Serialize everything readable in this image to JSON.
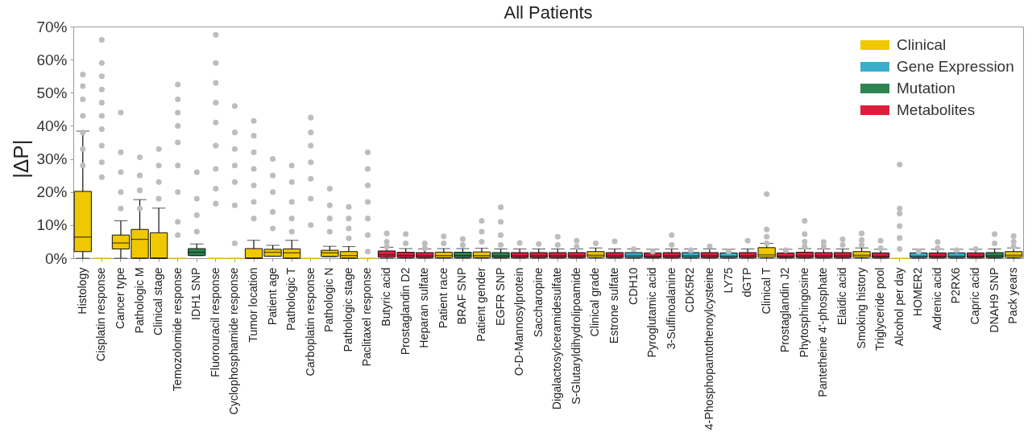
{
  "chart_data": {
    "type": "box",
    "title": "All Patients",
    "ylabel": "|ΔP|",
    "categories": [
      "Histology",
      "Cisplatin response",
      "Cancer type",
      "Pathologic M",
      "Clinical stage",
      "Temozolomide response",
      "IDH1 SNP",
      "Fluorouracil response",
      "Cyclophosphamide response",
      "Tumor location",
      "Patient age",
      "Pathologic T",
      "Carboplatin response",
      "Pathologic N",
      "Pathologic stage",
      "Paclitaxel response",
      "Butyric acid",
      "Prostaglandin D2",
      "Heparan sulfate",
      "Patient race",
      "BRAF SNP",
      "Patient gender",
      "EGFR SNP",
      "O-D-Mannosylprotein",
      "Saccharopine",
      "Digalactosylceramidesulfate",
      "S-Glutaryldihydrolipoamide",
      "Clinical grade",
      "Estrone sulfate",
      "CDH10",
      "Pyroglutamic acid",
      "3-Sulfinoalanine",
      "CDK5R2",
      "4-Phosphopantothenoylcysteine",
      "LY75",
      "dGTP",
      "Clinical T",
      "Prostaglandin J2",
      "Phytosphingosine",
      "Pantetheine 4'-phosphate",
      "Elaidic acid",
      "Smoking history",
      "Triglyceride pool",
      "Alcohol per day",
      "HOMER2",
      "Adrenic acid",
      "P2RX6",
      "Capric acid",
      "DNAH9 SNP",
      "Pack years"
    ],
    "ylim": [
      0,
      70
    ],
    "yticks": [
      {
        "value": 0,
        "label": "0%"
      },
      {
        "value": 10,
        "label": "10%"
      },
      {
        "value": 20,
        "label": "20%"
      },
      {
        "value": 30,
        "label": "30%"
      },
      {
        "value": 40,
        "label": "40%"
      },
      {
        "value": 50,
        "label": "50%"
      },
      {
        "value": 60,
        "label": "60%"
      },
      {
        "value": 70,
        "label": "70%"
      }
    ],
    "legend": "top right",
    "series": [
      {
        "type": "box",
        "name": "Clinical",
        "color": "#f0c800",
        "boxes": [
          {
            "low": 0,
            "q1": 2.0,
            "median": 6.4,
            "q3": 20.2,
            "high": 38.4
          },
          {
            "low": 0,
            "q1": 0,
            "median": 0,
            "q3": 0,
            "high": 0
          },
          {
            "low": 0,
            "q1": 2.8,
            "median": 4.6,
            "q3": 7.0,
            "high": 11.3
          },
          {
            "low": 0,
            "q1": 0,
            "median": 5.7,
            "q3": 8.7,
            "high": 17.7
          },
          {
            "low": 0,
            "q1": 0,
            "median": 0,
            "q3": 7.7,
            "high": 15.1
          },
          {
            "low": 0,
            "q1": 0,
            "median": 0,
            "q3": 0,
            "high": 0
          },
          null,
          {
            "low": 0,
            "q1": 0,
            "median": 0,
            "q3": 0,
            "high": 0
          },
          {
            "low": 0,
            "q1": 0,
            "median": 0,
            "q3": 0,
            "high": 0
          },
          {
            "low": 0,
            "q1": 0,
            "median": 0,
            "q3": 2.9,
            "high": 5.4
          },
          {
            "low": 0.6,
            "q1": 0.6,
            "median": 1.8,
            "q3": 2.7,
            "high": 3.9
          },
          {
            "low": 0,
            "q1": 0,
            "median": 1.6,
            "q3": 2.8,
            "high": 5.4
          },
          {
            "low": 0,
            "q1": 0,
            "median": 0,
            "q3": 0,
            "high": 0
          },
          {
            "low": 0.5,
            "q1": 0.5,
            "median": 1.6,
            "q3": 2.4,
            "high": 3.6
          },
          {
            "low": 0,
            "q1": 0,
            "median": 0.8,
            "q3": 2.0,
            "high": 3.5
          },
          {
            "low": 0,
            "q1": 0,
            "median": 0,
            "q3": 0,
            "high": 0
          },
          null,
          null,
          null,
          {
            "low": 0,
            "q1": 0.2,
            "median": 0.8,
            "q3": 1.8,
            "high": 2.9
          },
          null,
          {
            "low": 0,
            "q1": 0.2,
            "median": 0.8,
            "q3": 1.9,
            "high": 3.0
          },
          null,
          null,
          null,
          null,
          null,
          {
            "low": 0,
            "q1": 0.3,
            "median": 0.9,
            "q3": 2.0,
            "high": 3.1
          },
          null,
          null,
          null,
          null,
          null,
          null,
          null,
          null,
          {
            "low": 0,
            "q1": 0.3,
            "median": 1.0,
            "q3": 3.2,
            "high": 4.5
          },
          null,
          null,
          null,
          null,
          {
            "low": 0,
            "q1": 0.3,
            "median": 0.9,
            "q3": 2.0,
            "high": 3.1
          },
          null,
          {
            "low": 0,
            "q1": 0,
            "median": 0,
            "q3": 0,
            "high": 0
          },
          null,
          null,
          null,
          null,
          null,
          {
            "low": 0,
            "q1": 0.3,
            "median": 0.9,
            "q3": 2.0,
            "high": 3.1
          }
        ]
      },
      {
        "type": "box",
        "name": "Gene Expression",
        "color": "#3aaecb",
        "boxes": [
          null,
          null,
          null,
          null,
          null,
          null,
          null,
          null,
          null,
          null,
          null,
          null,
          null,
          null,
          null,
          null,
          null,
          null,
          null,
          null,
          null,
          null,
          null,
          null,
          null,
          null,
          null,
          null,
          null,
          {
            "low": 0,
            "q1": 0.2,
            "median": 0.7,
            "q3": 1.7,
            "high": 2.8
          },
          null,
          null,
          {
            "low": 0,
            "q1": 0.2,
            "median": 0.7,
            "q3": 1.7,
            "high": 2.8
          },
          null,
          {
            "low": 0,
            "q1": 0.2,
            "median": 0.6,
            "q3": 1.6,
            "high": 2.7
          },
          null,
          null,
          null,
          null,
          null,
          null,
          null,
          null,
          null,
          {
            "low": 0,
            "q1": 0.2,
            "median": 0.6,
            "q3": 1.6,
            "high": 2.7
          },
          null,
          {
            "low": 0,
            "q1": 0.2,
            "median": 0.6,
            "q3": 1.6,
            "high": 2.7
          },
          null,
          null,
          null
        ]
      },
      {
        "type": "box",
        "name": "Mutation",
        "color": "#2e8552",
        "boxes": [
          null,
          null,
          null,
          null,
          null,
          null,
          {
            "low": 0.8,
            "q1": 0.8,
            "median": 1.8,
            "q3": 2.9,
            "high": 4.3
          },
          null,
          null,
          null,
          null,
          null,
          null,
          null,
          null,
          null,
          null,
          null,
          null,
          null,
          {
            "low": 0,
            "q1": 0.2,
            "median": 0.8,
            "q3": 1.8,
            "high": 2.9
          },
          null,
          {
            "low": 0,
            "q1": 0.2,
            "median": 0.7,
            "q3": 1.7,
            "high": 2.8
          },
          null,
          null,
          null,
          null,
          null,
          null,
          null,
          null,
          null,
          null,
          null,
          null,
          null,
          null,
          null,
          null,
          null,
          null,
          null,
          null,
          null,
          null,
          null,
          null,
          null,
          {
            "low": 0,
            "q1": 0.2,
            "median": 0.7,
            "q3": 1.7,
            "high": 2.8
          },
          null
        ]
      },
      {
        "type": "box",
        "name": "Metabolites",
        "color": "#dc1e3c",
        "boxes": [
          null,
          null,
          null,
          null,
          null,
          null,
          null,
          null,
          null,
          null,
          null,
          null,
          null,
          null,
          null,
          null,
          {
            "low": 0,
            "q1": 0.3,
            "median": 1.0,
            "q3": 2.2,
            "high": 3.3
          },
          {
            "low": 0,
            "q1": 0.2,
            "median": 0.8,
            "q3": 1.8,
            "high": 2.9
          },
          {
            "low": 0,
            "q1": 0.2,
            "median": 0.7,
            "q3": 1.7,
            "high": 2.8
          },
          null,
          null,
          null,
          null,
          {
            "low": 0,
            "q1": 0.2,
            "median": 0.7,
            "q3": 1.7,
            "high": 2.8
          },
          {
            "low": 0,
            "q1": 0.2,
            "median": 0.7,
            "q3": 1.7,
            "high": 2.8
          },
          {
            "low": 0,
            "q1": 0.2,
            "median": 0.7,
            "q3": 1.7,
            "high": 2.8
          },
          {
            "low": 0,
            "q1": 0.2,
            "median": 0.7,
            "q3": 1.7,
            "high": 2.8
          },
          null,
          {
            "low": 0,
            "q1": 0.2,
            "median": 0.7,
            "q3": 1.7,
            "high": 2.8
          },
          null,
          {
            "low": 0,
            "q1": 0.2,
            "median": 0.6,
            "q3": 1.6,
            "high": 2.7
          },
          {
            "low": 0,
            "q1": 0.2,
            "median": 0.7,
            "q3": 1.7,
            "high": 2.8
          },
          null,
          {
            "low": 0,
            "q1": 0.2,
            "median": 0.7,
            "q3": 1.7,
            "high": 2.8
          },
          null,
          {
            "low": 0,
            "q1": 0.2,
            "median": 0.7,
            "q3": 1.7,
            "high": 2.8
          },
          null,
          {
            "low": 0,
            "q1": 0.2,
            "median": 0.6,
            "q3": 1.6,
            "high": 2.7
          },
          {
            "low": 0,
            "q1": 0.2,
            "median": 0.7,
            "q3": 1.8,
            "high": 2.9
          },
          {
            "low": 0,
            "q1": 0.2,
            "median": 0.7,
            "q3": 1.7,
            "high": 2.8
          },
          {
            "low": 0,
            "q1": 0.2,
            "median": 0.7,
            "q3": 1.7,
            "high": 2.8
          },
          null,
          {
            "low": 0,
            "q1": 0.2,
            "median": 0.6,
            "q3": 1.6,
            "high": 2.7
          },
          null,
          null,
          {
            "low": 0,
            "q1": 0.2,
            "median": 0.6,
            "q3": 1.6,
            "high": 2.7
          },
          null,
          {
            "low": 0,
            "q1": 0.2,
            "median": 0.6,
            "q3": 1.6,
            "high": 2.7
          },
          null,
          null
        ]
      },
      {
        "type": "scatter",
        "color": "#bdbdbd",
        "marker": "circle",
        "x": [
          "Histology",
          "Histology",
          "Histology",
          "Histology",
          "Histology",
          "Histology",
          "Histology",
          "Cisplatin response",
          "Cisplatin response",
          "Cisplatin response",
          "Cisplatin response",
          "Cisplatin response",
          "Cisplatin response",
          "Cisplatin response",
          "Cisplatin response",
          "Cisplatin response",
          "Cisplatin response",
          "Cancer type",
          "Cancer type",
          "Cancer type",
          "Cancer type",
          "Cancer type",
          "Pathologic M",
          "Pathologic M",
          "Pathologic M",
          "Pathologic M",
          "Clinical stage",
          "Clinical stage",
          "Clinical stage",
          "Clinical stage",
          "Temozolomide response",
          "Temozolomide response",
          "Temozolomide response",
          "Temozolomide response",
          "Temozolomide response",
          "Temozolomide response",
          "Temozolomide response",
          "Temozolomide response",
          "Temozolomide response",
          "IDH1 SNP",
          "IDH1 SNP",
          "IDH1 SNP",
          "IDH1 SNP",
          "Fluorouracil response",
          "Fluorouracil response",
          "Fluorouracil response",
          "Fluorouracil response",
          "Fluorouracil response",
          "Fluorouracil response",
          "Fluorouracil response",
          "Fluorouracil response",
          "Fluorouracil response",
          "Cyclophosphamide response",
          "Cyclophosphamide response",
          "Cyclophosphamide response",
          "Cyclophosphamide response",
          "Cyclophosphamide response",
          "Cyclophosphamide response",
          "Cyclophosphamide response",
          "Tumor location",
          "Tumor location",
          "Tumor location",
          "Tumor location",
          "Tumor location",
          "Tumor location",
          "Tumor location",
          "Patient age",
          "Patient age",
          "Patient age",
          "Patient age",
          "Patient age",
          "Pathologic T",
          "Pathologic T",
          "Pathologic T",
          "Pathologic T",
          "Pathologic T",
          "Carboplatin response",
          "Carboplatin response",
          "Carboplatin response",
          "Carboplatin response",
          "Carboplatin response",
          "Carboplatin response",
          "Carboplatin response",
          "Pathologic N",
          "Pathologic N",
          "Pathologic N",
          "Pathologic N",
          "Pathologic stage",
          "Pathologic stage",
          "Pathologic stage",
          "Pathologic stage",
          "Paclitaxel response",
          "Paclitaxel response",
          "Paclitaxel response",
          "Paclitaxel response",
          "Paclitaxel response",
          "Paclitaxel response",
          "Paclitaxel response",
          "Butyric acid",
          "Butyric acid",
          "Butyric acid",
          "Prostaglandin D2",
          "Prostaglandin D2",
          "Heparan sulfate",
          "Heparan sulfate",
          "Patient race",
          "Patient race",
          "BRAF SNP",
          "BRAF SNP",
          "Patient gender",
          "Patient gender",
          "Patient gender",
          "EGFR SNP",
          "EGFR SNP",
          "EGFR SNP",
          "EGFR SNP",
          "O-D-Mannosylprotein",
          "Saccharopine",
          "Digalactosylceramidesulfate",
          "Digalactosylceramidesulfate",
          "S-Glutaryldihydrolipoamide",
          "S-Glutaryldihydrolipoamide",
          "Clinical grade",
          "Estrone sulfate",
          "CDH10",
          "Pyroglutamic acid",
          "3-Sulfinoalanine",
          "3-Sulfinoalanine",
          "CDK5R2",
          "4-Phosphopantothenoylcysteine",
          "LY75",
          "dGTP",
          "Clinical T",
          "Clinical T",
          "Clinical T",
          "Clinical T",
          "Prostaglandin J2",
          "Phytosphingosine",
          "Phytosphingosine",
          "Phytosphingosine",
          "Phytosphingosine",
          "Pantetheine 4'-phosphate",
          "Pantetheine 4'-phosphate",
          "Elaidic acid",
          "Elaidic acid",
          "Smoking history",
          "Smoking history",
          "Smoking history",
          "Triglyceride pool",
          "Triglyceride pool",
          "Alcohol per day",
          "Alcohol per day",
          "Alcohol per day",
          "Alcohol per day",
          "Alcohol per day",
          "Alcohol per day",
          "HOMER2",
          "Adrenic acid",
          "Adrenic acid",
          "P2RX6",
          "Capric acid",
          "DNAH9 SNP",
          "DNAH9 SNP",
          "Pack years",
          "Pack years",
          "Pack years"
        ],
        "values": [
          55.5,
          52,
          48,
          43,
          38,
          33,
          28,
          66,
          59,
          55,
          51,
          47,
          43,
          39,
          34,
          29,
          24.5,
          44,
          32,
          26,
          20,
          15,
          30.5,
          25,
          20.5,
          15,
          33,
          28,
          23,
          18,
          52.5,
          48,
          44,
          40,
          35,
          28,
          20,
          11,
          7,
          26,
          18,
          13,
          8,
          67.5,
          59,
          53,
          47,
          41,
          34,
          27,
          21,
          16.5,
          46,
          38,
          33,
          28,
          23,
          16,
          4.5,
          41.5,
          37,
          32,
          27,
          22,
          17,
          12,
          30,
          25,
          20,
          14,
          9,
          28,
          23,
          17,
          12,
          8,
          42.5,
          38,
          34,
          29,
          24,
          18,
          10,
          21,
          16,
          12,
          8,
          15.5,
          12,
          9,
          6,
          32,
          27,
          22,
          17,
          12,
          7,
          2,
          7.5,
          5,
          3.5,
          7.3,
          4.5,
          4.5,
          3,
          6.6,
          4.5,
          5.8,
          4,
          11.3,
          8,
          5,
          15.4,
          11,
          7,
          4,
          4.6,
          4.3,
          6.5,
          4,
          5.3,
          3.5,
          4.5,
          5.1,
          2.7,
          2,
          7,
          4,
          2.4,
          3.6,
          2,
          5.3,
          19.4,
          8.7,
          6.5,
          4.5,
          2.4,
          11.3,
          7.3,
          5,
          3.5,
          4.9,
          3.5,
          5.7,
          4,
          7.5,
          5.5,
          4,
          5.3,
          3,
          28.3,
          15,
          13.5,
          9.7,
          6.1,
          2.8,
          2,
          4.9,
          3,
          2.4,
          2.8,
          7.3,
          4.5,
          6.7,
          5,
          3.5
        ]
      }
    ]
  }
}
